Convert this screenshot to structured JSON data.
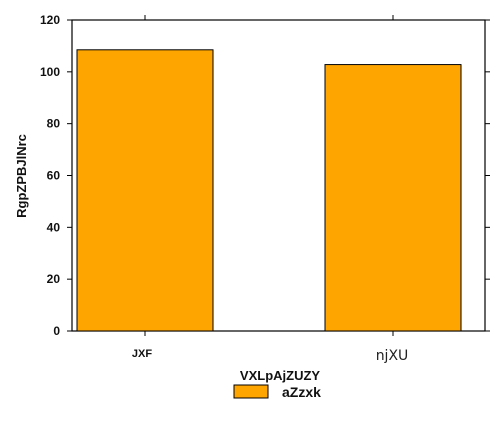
{
  "chart_data": {
    "type": "bar",
    "title": "",
    "xlabel": "VXLpAjZUZY",
    "ylabel": "RgpZPBJlNrc",
    "categories": [
      "JXF",
      "njXU"
    ],
    "series": [
      {
        "name": "aZzxk",
        "values": [
          108.5,
          102.8
        ],
        "color": "#FFA500"
      }
    ],
    "ylim": [
      0,
      120
    ],
    "yticks": [
      0,
      20,
      40,
      60,
      80,
      100,
      120
    ],
    "grid": false,
    "legend_position": "bottom-center",
    "bar_edge_color": "#000000"
  }
}
